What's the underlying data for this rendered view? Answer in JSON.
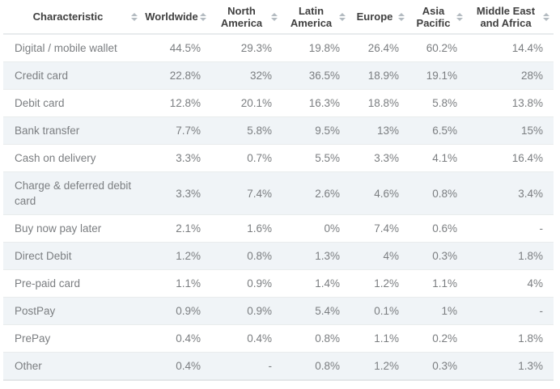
{
  "chart_data": {
    "type": "table",
    "columns": [
      "Characteristic",
      "Worldwide",
      "North America",
      "Latin America",
      "Europe",
      "Asia Pacific",
      "Middle East and Africa"
    ],
    "rows": [
      {
        "label": "Digital / mobile wallet",
        "values": [
          "44.5%",
          "29.3%",
          "19.8%",
          "26.4%",
          "60.2%",
          "14.4%"
        ]
      },
      {
        "label": "Credit card",
        "values": [
          "22.8%",
          "32%",
          "36.5%",
          "18.9%",
          "19.1%",
          "28%"
        ]
      },
      {
        "label": "Debit card",
        "values": [
          "12.8%",
          "20.1%",
          "16.3%",
          "18.8%",
          "5.8%",
          "13.8%"
        ]
      },
      {
        "label": "Bank transfer",
        "values": [
          "7.7%",
          "5.8%",
          "9.5%",
          "13%",
          "6.5%",
          "15%"
        ]
      },
      {
        "label": "Cash on delivery",
        "values": [
          "3.3%",
          "0.7%",
          "5.5%",
          "3.3%",
          "4.1%",
          "16.4%"
        ]
      },
      {
        "label": "Charge & deferred debit card",
        "values": [
          "3.3%",
          "7.4%",
          "2.6%",
          "4.6%",
          "0.8%",
          "3.4%"
        ]
      },
      {
        "label": "Buy now pay later",
        "values": [
          "2.1%",
          "1.6%",
          "0%",
          "7.4%",
          "0.6%",
          "-"
        ]
      },
      {
        "label": "Direct Debit",
        "values": [
          "1.2%",
          "0.8%",
          "1.3%",
          "4%",
          "0.3%",
          "1.8%"
        ]
      },
      {
        "label": "Pre-paid card",
        "values": [
          "1.1%",
          "0.9%",
          "1.4%",
          "1.2%",
          "1.1%",
          "4%"
        ]
      },
      {
        "label": "PostPay",
        "values": [
          "0.9%",
          "0.9%",
          "5.4%",
          "0.1%",
          "1%",
          "-"
        ]
      },
      {
        "label": "PrePay",
        "values": [
          "0.4%",
          "0.4%",
          "0.8%",
          "1.1%",
          "0.2%",
          "1.8%"
        ]
      },
      {
        "label": "Other",
        "values": [
          "0.4%",
          "-",
          "0.8%",
          "1.2%",
          "0.3%",
          "1.3%"
        ]
      }
    ],
    "layout": {
      "header_sortable": true,
      "value_alignment": "right",
      "alternating_rows": true
    }
  },
  "icons": {
    "sort": "sort-arrows-icon"
  },
  "colors": {
    "header_text": "#404040",
    "body_text": "#7b7e81",
    "alt_row_bg": "#f0f4f7",
    "row_divider": "#e9eced",
    "header_divider": "#e8ebed",
    "sort_icon": "#b4bbc1",
    "background": "#ffffff"
  }
}
